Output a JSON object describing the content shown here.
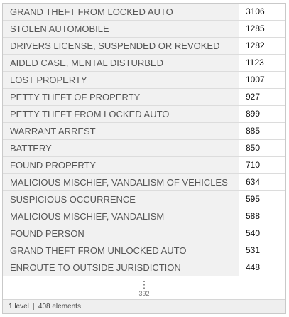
{
  "rows": [
    {
      "key": "GRAND THEFT FROM LOCKED AUTO",
      "value": "3106"
    },
    {
      "key": "STOLEN AUTOMOBILE",
      "value": "1285"
    },
    {
      "key": "DRIVERS LICENSE, SUSPENDED OR REVOKED",
      "value": "1282"
    },
    {
      "key": "AIDED CASE, MENTAL DISTURBED",
      "value": "1123"
    },
    {
      "key": "LOST PROPERTY",
      "value": "1007"
    },
    {
      "key": "PETTY THEFT OF PROPERTY",
      "value": "927"
    },
    {
      "key": "PETTY THEFT FROM LOCKED AUTO",
      "value": "899"
    },
    {
      "key": "WARRANT ARREST",
      "value": "885"
    },
    {
      "key": "BATTERY",
      "value": "850"
    },
    {
      "key": "FOUND PROPERTY",
      "value": "710"
    },
    {
      "key": "MALICIOUS MISCHIEF, VANDALISM OF VEHICLES",
      "value": "634"
    },
    {
      "key": "SUSPICIOUS OCCURRENCE",
      "value": "595"
    },
    {
      "key": "MALICIOUS MISCHIEF, VANDALISM",
      "value": "588"
    },
    {
      "key": "FOUND PERSON",
      "value": "540"
    },
    {
      "key": "GRAND THEFT FROM UNLOCKED AUTO",
      "value": "531"
    },
    {
      "key": "ENROUTE TO OUTSIDE JURISDICTION",
      "value": "448"
    }
  ],
  "more": {
    "icon": "vertical-ellipsis",
    "count": "392"
  },
  "footer": {
    "levels": "1 level",
    "elements": "408 elements"
  }
}
